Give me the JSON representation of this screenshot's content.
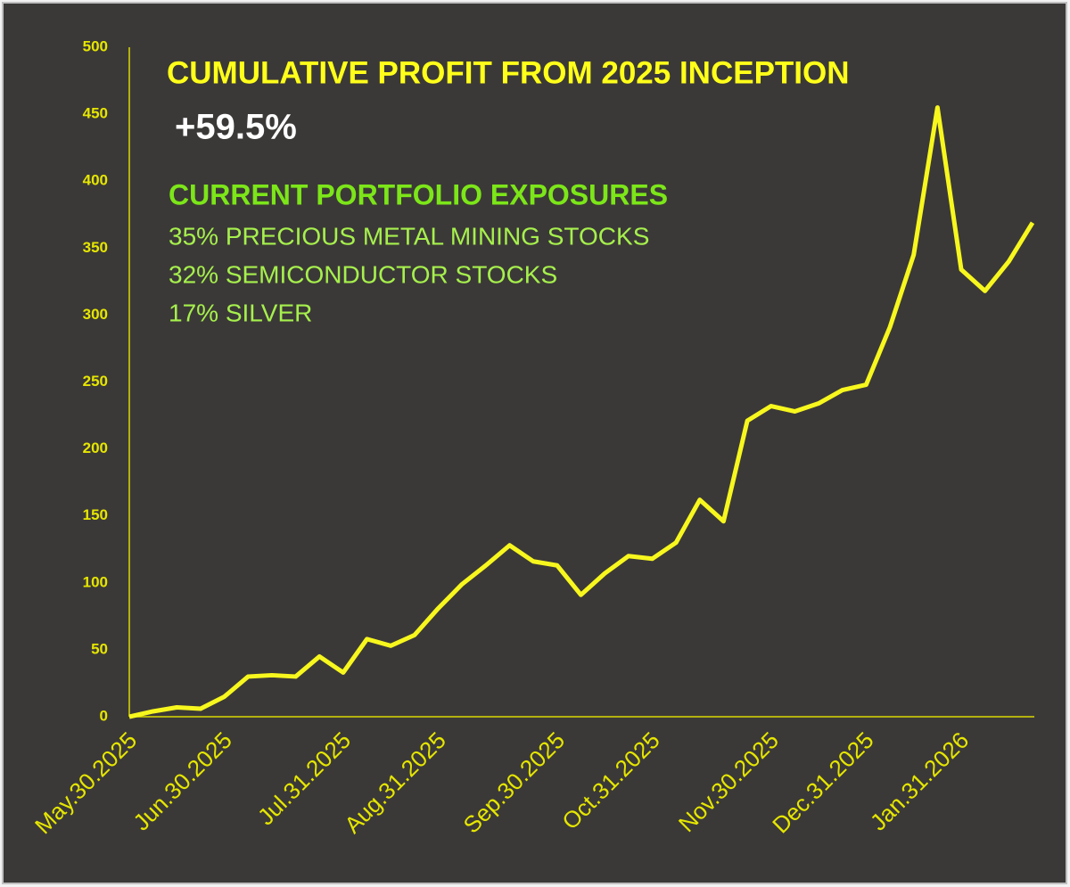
{
  "chart_data": {
    "type": "line",
    "title": "CUMULATIVE PROFIT FROM 2025 INCEPTION",
    "subtitle": "+59.5%",
    "annotation_title": "CURRENT PORTFOLIO EXPOSURES",
    "annotations": [
      "35% PRECIOUS METAL MINING STOCKS",
      "32% SEMICONDUCTOR STOCKS",
      "17% SILVER"
    ],
    "categories": [
      "May.30.2025",
      null,
      null,
      null,
      "Jun.30.2025",
      null,
      null,
      null,
      null,
      "Jul.31.2025",
      null,
      null,
      null,
      "Aug.31.2025",
      null,
      null,
      null,
      null,
      "Sep.30.2025",
      null,
      null,
      null,
      "Oct.31.2025",
      null,
      null,
      null,
      null,
      "Nov.30.2025",
      null,
      null,
      null,
      "Dec.31.2025",
      null,
      null,
      null,
      "Jan.31.2026",
      null,
      null,
      null
    ],
    "series": [
      {
        "color": "#f7f71e",
        "values": [
          0,
          4,
          7,
          6,
          15,
          30,
          31,
          30,
          45,
          33,
          58,
          53,
          61,
          81,
          99,
          113,
          128,
          116,
          113,
          91,
          107,
          120,
          118,
          130,
          162,
          146,
          221,
          232,
          228,
          234,
          244,
          248,
          291,
          345,
          455,
          334,
          318,
          340,
          369
        ]
      }
    ],
    "ylim": [
      0,
      500
    ],
    "yticks": [
      0,
      50,
      100,
      150,
      200,
      250,
      300,
      350,
      400,
      450,
      500
    ],
    "grid": false
  }
}
